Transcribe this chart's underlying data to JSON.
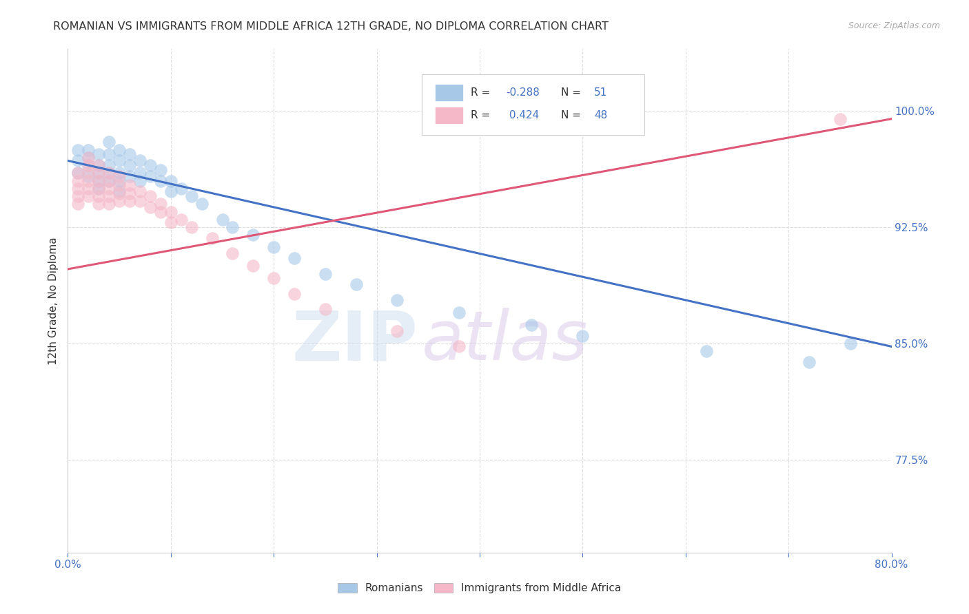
{
  "title": "ROMANIAN VS IMMIGRANTS FROM MIDDLE AFRICA 12TH GRADE, NO DIPLOMA CORRELATION CHART",
  "source": "Source: ZipAtlas.com",
  "ylabel": "12th Grade, No Diploma",
  "ytick_labels": [
    "100.0%",
    "92.5%",
    "85.0%",
    "77.5%"
  ],
  "ytick_values": [
    1.0,
    0.925,
    0.85,
    0.775
  ],
  "xlim": [
    0.0,
    0.08
  ],
  "ylim": [
    0.715,
    1.04
  ],
  "blue_color": "#a8c8e8",
  "pink_color": "#f4b8c8",
  "blue_line_color": "#4472c4",
  "pink_line_color": "#e05878",
  "watermark_zip": "ZIP",
  "watermark_atlas": "atlas",
  "romanians_label": "Romanians",
  "immigrants_label": "Immigrants from Middle Africa",
  "blue_scatter_x": [
    0.001,
    0.001,
    0.001,
    0.002,
    0.002,
    0.002,
    0.002,
    0.003,
    0.003,
    0.003,
    0.003,
    0.003,
    0.004,
    0.004,
    0.004,
    0.004,
    0.004,
    0.005,
    0.005,
    0.005,
    0.005,
    0.005,
    0.006,
    0.006,
    0.006,
    0.007,
    0.007,
    0.007,
    0.008,
    0.008,
    0.009,
    0.009,
    0.01,
    0.01,
    0.011,
    0.012,
    0.013,
    0.015,
    0.016,
    0.018,
    0.02,
    0.022,
    0.025,
    0.028,
    0.032,
    0.038,
    0.045,
    0.05,
    0.062,
    0.072,
    0.076
  ],
  "blue_scatter_y": [
    0.975,
    0.968,
    0.96,
    0.975,
    0.97,
    0.965,
    0.958,
    0.972,
    0.965,
    0.96,
    0.955,
    0.95,
    0.98,
    0.972,
    0.965,
    0.96,
    0.955,
    0.975,
    0.968,
    0.96,
    0.955,
    0.948,
    0.972,
    0.965,
    0.958,
    0.968,
    0.96,
    0.955,
    0.965,
    0.958,
    0.962,
    0.955,
    0.955,
    0.948,
    0.95,
    0.945,
    0.94,
    0.93,
    0.925,
    0.92,
    0.912,
    0.905,
    0.895,
    0.888,
    0.878,
    0.87,
    0.862,
    0.855,
    0.845,
    0.838,
    0.85
  ],
  "pink_scatter_x": [
    0.001,
    0.001,
    0.001,
    0.001,
    0.001,
    0.002,
    0.002,
    0.002,
    0.002,
    0.002,
    0.002,
    0.003,
    0.003,
    0.003,
    0.003,
    0.003,
    0.003,
    0.004,
    0.004,
    0.004,
    0.004,
    0.004,
    0.005,
    0.005,
    0.005,
    0.005,
    0.006,
    0.006,
    0.006,
    0.007,
    0.007,
    0.008,
    0.008,
    0.009,
    0.009,
    0.01,
    0.01,
    0.011,
    0.012,
    0.014,
    0.016,
    0.018,
    0.02,
    0.022,
    0.025,
    0.032,
    0.038,
    0.075
  ],
  "pink_scatter_y": [
    0.96,
    0.955,
    0.95,
    0.945,
    0.94,
    0.97,
    0.965,
    0.96,
    0.955,
    0.95,
    0.945,
    0.965,
    0.96,
    0.955,
    0.95,
    0.945,
    0.94,
    0.96,
    0.955,
    0.95,
    0.945,
    0.94,
    0.958,
    0.952,
    0.947,
    0.942,
    0.952,
    0.947,
    0.942,
    0.948,
    0.942,
    0.945,
    0.938,
    0.94,
    0.935,
    0.935,
    0.928,
    0.93,
    0.925,
    0.918,
    0.908,
    0.9,
    0.892,
    0.882,
    0.872,
    0.858,
    0.848,
    0.995
  ],
  "blue_line_x": [
    0.0,
    0.08
  ],
  "blue_line_y": [
    0.968,
    0.848
  ],
  "pink_line_x": [
    0.0,
    0.08
  ],
  "pink_line_y": [
    0.898,
    0.995
  ],
  "xtick_positions": [
    0.0,
    0.01,
    0.02,
    0.03,
    0.04,
    0.05,
    0.06,
    0.07,
    0.08
  ],
  "xtick_left_label": "0.0%",
  "xtick_right_label": "80.0%"
}
